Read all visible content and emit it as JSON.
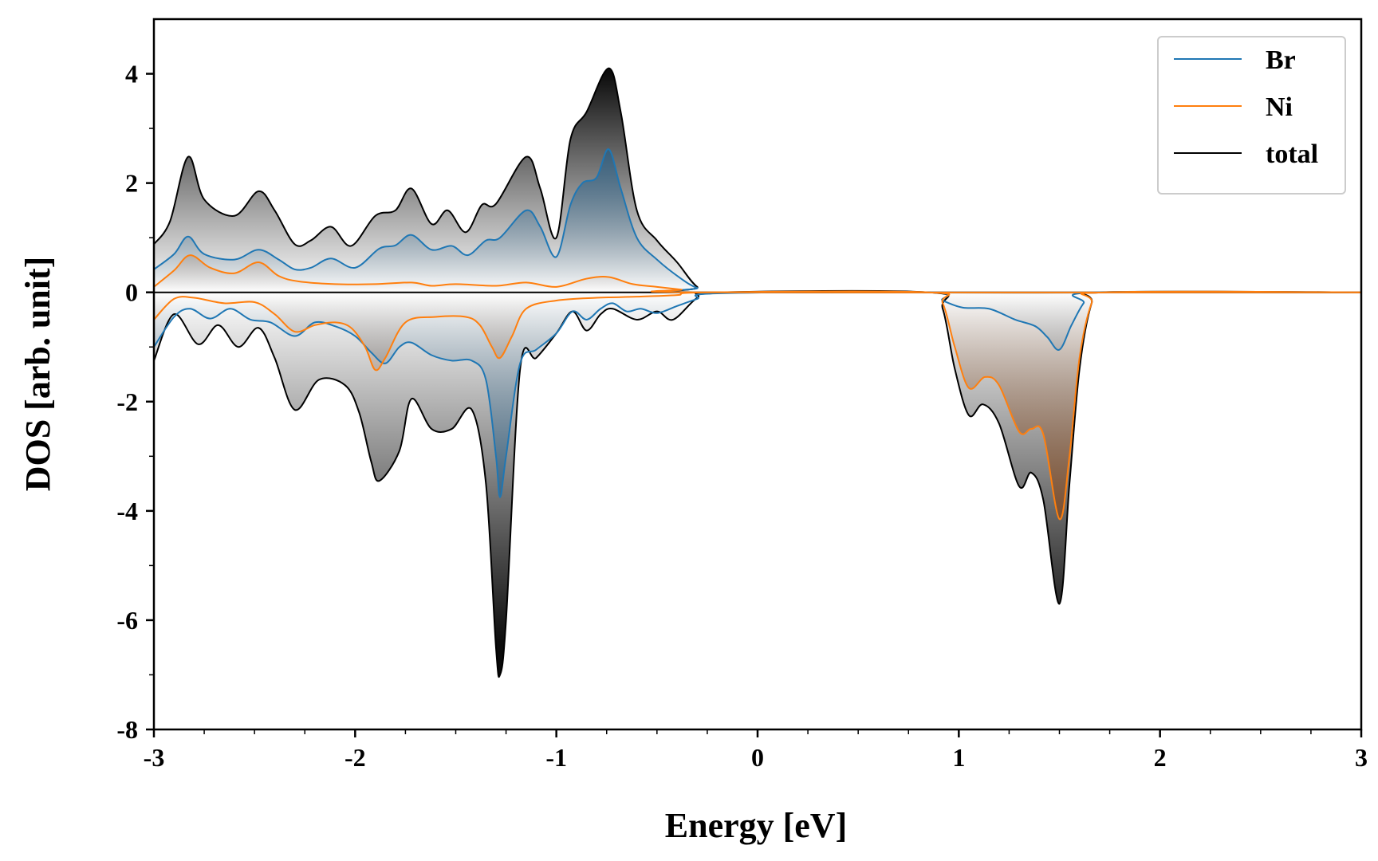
{
  "chart_data": {
    "type": "line",
    "title": "",
    "xlabel": "Energy [eV]",
    "ylabel": "DOS [arb. unit]",
    "xlim": [
      -3,
      3
    ],
    "ylim": [
      -8,
      5
    ],
    "xticks": [
      -3,
      -2,
      -1,
      0,
      1,
      2,
      3
    ],
    "xtick_labels": [
      "-3",
      "-2",
      "-1",
      "0",
      "1",
      "2",
      "3"
    ],
    "yticks": [
      -8,
      -6,
      -4,
      -2,
      0,
      2,
      4
    ],
    "ytick_labels": [
      "-8",
      "-6",
      "-4",
      "-2",
      "0",
      "2",
      "4"
    ],
    "legend_position": "top-right",
    "fill_gradient": true,
    "series": [
      {
        "name": "Br",
        "color": "#1f77b4",
        "fill_color": "#1f5f8e",
        "spin_up": [
          [
            -3.0,
            0.42
          ],
          [
            -2.9,
            0.7
          ],
          [
            -2.83,
            1.02
          ],
          [
            -2.75,
            0.7
          ],
          [
            -2.6,
            0.6
          ],
          [
            -2.48,
            0.78
          ],
          [
            -2.38,
            0.6
          ],
          [
            -2.3,
            0.42
          ],
          [
            -2.22,
            0.45
          ],
          [
            -2.12,
            0.62
          ],
          [
            -2.0,
            0.45
          ],
          [
            -1.88,
            0.8
          ],
          [
            -1.8,
            0.86
          ],
          [
            -1.72,
            1.05
          ],
          [
            -1.62,
            0.78
          ],
          [
            -1.52,
            0.85
          ],
          [
            -1.44,
            0.68
          ],
          [
            -1.35,
            0.95
          ],
          [
            -1.28,
            1.0
          ],
          [
            -1.15,
            1.5
          ],
          [
            -1.08,
            1.2
          ],
          [
            -1.0,
            0.65
          ],
          [
            -0.93,
            1.6
          ],
          [
            -0.87,
            2.0
          ],
          [
            -0.8,
            2.1
          ],
          [
            -0.74,
            2.62
          ],
          [
            -0.68,
            1.9
          ],
          [
            -0.6,
            1.0
          ],
          [
            -0.5,
            0.6
          ],
          [
            -0.38,
            0.25
          ],
          [
            -0.3,
            0.08
          ],
          [
            -0.2,
            0.0
          ],
          [
            3.0,
            0.0
          ]
        ],
        "spin_down": [
          [
            -3.0,
            -1.0
          ],
          [
            -2.9,
            -0.45
          ],
          [
            -2.82,
            -0.3
          ],
          [
            -2.72,
            -0.48
          ],
          [
            -2.62,
            -0.3
          ],
          [
            -2.52,
            -0.5
          ],
          [
            -2.42,
            -0.55
          ],
          [
            -2.3,
            -0.8
          ],
          [
            -2.2,
            -0.55
          ],
          [
            -2.1,
            -0.62
          ],
          [
            -2.0,
            -0.8
          ],
          [
            -1.92,
            -1.1
          ],
          [
            -1.85,
            -1.3
          ],
          [
            -1.78,
            -1.0
          ],
          [
            -1.72,
            -0.92
          ],
          [
            -1.62,
            -1.15
          ],
          [
            -1.52,
            -1.25
          ],
          [
            -1.42,
            -1.25
          ],
          [
            -1.35,
            -1.6
          ],
          [
            -1.3,
            -3.0
          ],
          [
            -1.28,
            -3.75
          ],
          [
            -1.25,
            -3.0
          ],
          [
            -1.18,
            -1.3
          ],
          [
            -1.1,
            -1.05
          ],
          [
            -1.0,
            -0.75
          ],
          [
            -0.92,
            -0.35
          ],
          [
            -0.85,
            -0.5
          ],
          [
            -0.78,
            -0.3
          ],
          [
            -0.72,
            -0.2
          ],
          [
            -0.65,
            -0.35
          ],
          [
            -0.58,
            -0.3
          ],
          [
            -0.5,
            -0.38
          ],
          [
            -0.4,
            -0.25
          ],
          [
            -0.3,
            -0.12
          ],
          [
            -0.2,
            -0.02
          ],
          [
            0.85,
            0.0
          ],
          [
            0.92,
            -0.15
          ],
          [
            1.02,
            -0.28
          ],
          [
            1.15,
            -0.3
          ],
          [
            1.28,
            -0.5
          ],
          [
            1.38,
            -0.62
          ],
          [
            1.44,
            -0.82
          ],
          [
            1.5,
            -1.05
          ],
          [
            1.56,
            -0.6
          ],
          [
            1.62,
            -0.2
          ],
          [
            1.68,
            0.0
          ],
          [
            3.0,
            0.0
          ]
        ]
      },
      {
        "name": "Ni",
        "color": "#ff7f0e",
        "fill_color": "#8b4513",
        "spin_up": [
          [
            -3.0,
            0.1
          ],
          [
            -2.9,
            0.4
          ],
          [
            -2.82,
            0.68
          ],
          [
            -2.72,
            0.45
          ],
          [
            -2.6,
            0.35
          ],
          [
            -2.48,
            0.55
          ],
          [
            -2.38,
            0.3
          ],
          [
            -2.28,
            0.2
          ],
          [
            -2.1,
            0.15
          ],
          [
            -1.9,
            0.15
          ],
          [
            -1.72,
            0.18
          ],
          [
            -1.62,
            0.12
          ],
          [
            -1.5,
            0.15
          ],
          [
            -1.3,
            0.12
          ],
          [
            -1.15,
            0.18
          ],
          [
            -1.0,
            0.1
          ],
          [
            -0.85,
            0.25
          ],
          [
            -0.74,
            0.28
          ],
          [
            -0.62,
            0.15
          ],
          [
            -0.5,
            0.1
          ],
          [
            -0.38,
            0.05
          ],
          [
            -0.25,
            0.0
          ],
          [
            3.0,
            0.0
          ]
        ],
        "spin_down": [
          [
            -3.0,
            -0.5
          ],
          [
            -2.9,
            -0.12
          ],
          [
            -2.8,
            -0.1
          ],
          [
            -2.65,
            -0.2
          ],
          [
            -2.5,
            -0.18
          ],
          [
            -2.4,
            -0.4
          ],
          [
            -2.3,
            -0.72
          ],
          [
            -2.2,
            -0.6
          ],
          [
            -2.1,
            -0.55
          ],
          [
            -2.02,
            -0.65
          ],
          [
            -1.95,
            -1.0
          ],
          [
            -1.9,
            -1.42
          ],
          [
            -1.85,
            -1.2
          ],
          [
            -1.75,
            -0.55
          ],
          [
            -1.6,
            -0.45
          ],
          [
            -1.45,
            -0.45
          ],
          [
            -1.38,
            -0.6
          ],
          [
            -1.32,
            -1.0
          ],
          [
            -1.28,
            -1.2
          ],
          [
            -1.22,
            -0.8
          ],
          [
            -1.15,
            -0.3
          ],
          [
            -1.0,
            -0.15
          ],
          [
            -0.8,
            -0.1
          ],
          [
            -0.6,
            -0.08
          ],
          [
            -0.4,
            -0.05
          ],
          [
            -0.25,
            0.0
          ],
          [
            0.85,
            0.0
          ],
          [
            0.92,
            -0.2
          ],
          [
            0.98,
            -1.0
          ],
          [
            1.05,
            -1.75
          ],
          [
            1.13,
            -1.55
          ],
          [
            1.2,
            -1.7
          ],
          [
            1.3,
            -2.55
          ],
          [
            1.36,
            -2.5
          ],
          [
            1.42,
            -2.6
          ],
          [
            1.5,
            -4.15
          ],
          [
            1.55,
            -3.0
          ],
          [
            1.6,
            -1.2
          ],
          [
            1.66,
            -0.2
          ],
          [
            1.72,
            0.0
          ],
          [
            3.0,
            0.0
          ]
        ]
      },
      {
        "name": "total",
        "color": "#000000",
        "fill_color": "#000000",
        "spin_up": [
          [
            -3.0,
            0.88
          ],
          [
            -2.92,
            1.3
          ],
          [
            -2.83,
            2.48
          ],
          [
            -2.75,
            1.7
          ],
          [
            -2.6,
            1.4
          ],
          [
            -2.48,
            1.85
          ],
          [
            -2.4,
            1.5
          ],
          [
            -2.3,
            0.88
          ],
          [
            -2.22,
            0.95
          ],
          [
            -2.12,
            1.2
          ],
          [
            -2.02,
            0.85
          ],
          [
            -1.9,
            1.4
          ],
          [
            -1.8,
            1.5
          ],
          [
            -1.72,
            1.9
          ],
          [
            -1.62,
            1.25
          ],
          [
            -1.54,
            1.5
          ],
          [
            -1.45,
            1.1
          ],
          [
            -1.37,
            1.6
          ],
          [
            -1.3,
            1.62
          ],
          [
            -1.15,
            2.48
          ],
          [
            -1.08,
            1.9
          ],
          [
            -1.0,
            1.0
          ],
          [
            -0.93,
            2.8
          ],
          [
            -0.85,
            3.3
          ],
          [
            -0.74,
            4.1
          ],
          [
            -0.68,
            3.3
          ],
          [
            -0.6,
            1.5
          ],
          [
            -0.5,
            0.95
          ],
          [
            -0.4,
            0.55
          ],
          [
            -0.3,
            0.1
          ],
          [
            -0.2,
            0.0
          ],
          [
            3.0,
            0.0
          ]
        ],
        "spin_down": [
          [
            -3.0,
            -1.25
          ],
          [
            -2.9,
            -0.4
          ],
          [
            -2.78,
            -0.95
          ],
          [
            -2.68,
            -0.6
          ],
          [
            -2.58,
            -1.0
          ],
          [
            -2.48,
            -0.65
          ],
          [
            -2.4,
            -1.2
          ],
          [
            -2.3,
            -2.15
          ],
          [
            -2.18,
            -1.6
          ],
          [
            -2.05,
            -1.7
          ],
          [
            -1.98,
            -2.2
          ],
          [
            -1.92,
            -3.1
          ],
          [
            -1.88,
            -3.45
          ],
          [
            -1.78,
            -2.9
          ],
          [
            -1.72,
            -1.95
          ],
          [
            -1.62,
            -2.5
          ],
          [
            -1.52,
            -2.5
          ],
          [
            -1.42,
            -2.15
          ],
          [
            -1.35,
            -3.5
          ],
          [
            -1.3,
            -6.5
          ],
          [
            -1.28,
            -7.0
          ],
          [
            -1.25,
            -6.0
          ],
          [
            -1.18,
            -1.4
          ],
          [
            -1.1,
            -1.2
          ],
          [
            -1.0,
            -0.75
          ],
          [
            -0.92,
            -0.35
          ],
          [
            -0.85,
            -0.7
          ],
          [
            -0.78,
            -0.4
          ],
          [
            -0.72,
            -0.3
          ],
          [
            -0.6,
            -0.5
          ],
          [
            -0.5,
            -0.35
          ],
          [
            -0.42,
            -0.5
          ],
          [
            -0.3,
            -0.1
          ],
          [
            -0.2,
            0.0
          ],
          [
            0.85,
            0.0
          ],
          [
            0.92,
            -0.3
          ],
          [
            0.98,
            -1.4
          ],
          [
            1.05,
            -2.25
          ],
          [
            1.12,
            -2.05
          ],
          [
            1.2,
            -2.4
          ],
          [
            1.3,
            -3.55
          ],
          [
            1.36,
            -3.3
          ],
          [
            1.42,
            -3.8
          ],
          [
            1.5,
            -5.7
          ],
          [
            1.55,
            -3.5
          ],
          [
            1.6,
            -1.4
          ],
          [
            1.66,
            -0.2
          ],
          [
            1.72,
            0.0
          ],
          [
            3.0,
            0.0
          ]
        ]
      }
    ]
  }
}
